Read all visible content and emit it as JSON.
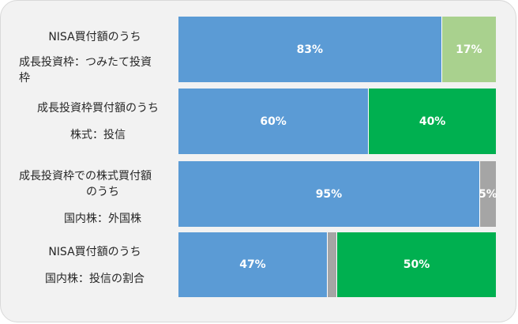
{
  "chart_data": {
    "type": "bar",
    "stacked": true,
    "orientation": "horizontal",
    "colors": {
      "blue": "#5b9bd5",
      "light_green": "#a9d18e",
      "green": "#00b050",
      "gray": "#a5a5a5"
    },
    "rows": [
      {
        "label_lines": [
          "NISA買付額のうち",
          "成長投資枠：つみたて投資",
          "枠"
        ],
        "segments": [
          {
            "value": 83,
            "label": "83%",
            "color": "#5b9bd5"
          },
          {
            "value": 17,
            "label": "17%",
            "color": "#a9d18e"
          }
        ]
      },
      {
        "label_lines": [
          "成長投資枠買付額のうち",
          "株式：投信"
        ],
        "segments": [
          {
            "value": 60,
            "label": "60%",
            "color": "#5b9bd5"
          },
          {
            "value": 40,
            "label": "40%",
            "color": "#00b050"
          }
        ]
      },
      {
        "label_lines": [
          "成長投資枠での株式買付額",
          "のうち",
          "国内株：外国株"
        ],
        "segments": [
          {
            "value": 95,
            "label": "95%",
            "color": "#5b9bd5"
          },
          {
            "value": 5,
            "label": "5%",
            "color": "#a5a5a5"
          }
        ]
      },
      {
        "label_lines": [
          "NISA買付額のうち",
          "国内株：投信の割合"
        ],
        "segments": [
          {
            "value": 47,
            "label": "47%",
            "color": "#5b9bd5"
          },
          {
            "value": 3,
            "label": "",
            "color": "#a5a5a5"
          },
          {
            "value": 50,
            "label": "50%",
            "color": "#00b050"
          }
        ]
      }
    ]
  }
}
